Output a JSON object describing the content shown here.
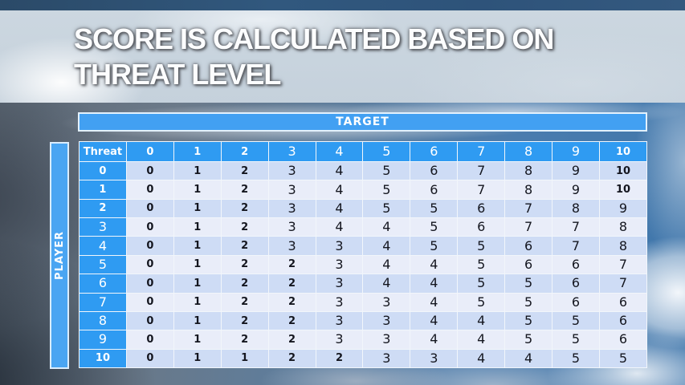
{
  "slide": {
    "title_line1": "SCORE IS CALCULATED BASED ON",
    "title_line2": "THREAT LEVEL"
  },
  "axes": {
    "target_label": "TARGET",
    "player_label": "PLAYER",
    "corner_label": "Threat"
  },
  "chart_data": {
    "type": "table",
    "title": "SCORE IS CALCULATED BASED ON THREAT LEVEL",
    "column_axis_label": "TARGET",
    "row_axis_label": "PLAYER",
    "corner_header": "Threat",
    "columns": [
      0,
      1,
      2,
      3,
      4,
      5,
      6,
      7,
      8,
      9,
      10
    ],
    "rows": [
      {
        "player": 0,
        "scores": [
          0,
          1,
          2,
          3,
          4,
          5,
          6,
          7,
          8,
          9,
          10
        ]
      },
      {
        "player": 1,
        "scores": [
          0,
          1,
          2,
          3,
          4,
          5,
          6,
          7,
          8,
          9,
          10
        ]
      },
      {
        "player": 2,
        "scores": [
          0,
          1,
          2,
          3,
          4,
          5,
          5,
          6,
          7,
          8,
          9
        ]
      },
      {
        "player": 3,
        "scores": [
          0,
          1,
          2,
          3,
          4,
          4,
          5,
          6,
          7,
          7,
          8
        ]
      },
      {
        "player": 4,
        "scores": [
          0,
          1,
          2,
          3,
          3,
          4,
          5,
          5,
          6,
          7,
          8
        ]
      },
      {
        "player": 5,
        "scores": [
          0,
          1,
          2,
          2,
          3,
          4,
          4,
          5,
          6,
          6,
          7
        ]
      },
      {
        "player": 6,
        "scores": [
          0,
          1,
          2,
          2,
          3,
          4,
          4,
          5,
          5,
          6,
          7
        ]
      },
      {
        "player": 7,
        "scores": [
          0,
          1,
          2,
          2,
          3,
          3,
          4,
          5,
          5,
          6,
          6
        ]
      },
      {
        "player": 8,
        "scores": [
          0,
          1,
          2,
          2,
          3,
          3,
          4,
          4,
          5,
          5,
          6
        ]
      },
      {
        "player": 9,
        "scores": [
          0,
          1,
          2,
          2,
          3,
          3,
          4,
          4,
          5,
          5,
          6
        ]
      },
      {
        "player": 10,
        "scores": [
          0,
          1,
          1,
          2,
          2,
          3,
          3,
          4,
          4,
          5,
          5
        ]
      }
    ]
  },
  "colors": {
    "accent_blue": "#2f9bf2",
    "target_bar_blue": "#42a0f2",
    "player_bar_blue": "#4aa5f2",
    "row_shade_dark": "#cedcf5",
    "row_shade_light": "#e9edf9",
    "cell_text": "#14161f",
    "title_text": "#fcfdfe",
    "top_strip_blue": "#2d4c6b",
    "title_band": "#cad5df"
  }
}
